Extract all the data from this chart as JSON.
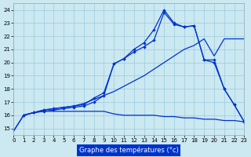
{
  "xlabel": "Graphe des températures (°c)",
  "bg_color": "#cce8f0",
  "grid_color": "#99cce0",
  "line_color": "#0033cc",
  "xlim": [
    0,
    23
  ],
  "ylim": [
    14.5,
    24.5
  ],
  "xticks": [
    0,
    1,
    2,
    3,
    4,
    5,
    6,
    7,
    8,
    9,
    10,
    11,
    12,
    13,
    14,
    15,
    16,
    17,
    18,
    19,
    20,
    21,
    22,
    23
  ],
  "yticks": [
    15,
    16,
    17,
    18,
    19,
    20,
    21,
    22,
    23,
    24
  ],
  "line1_x": [
    0,
    1,
    2,
    3,
    4,
    5,
    6,
    7,
    8,
    9,
    10,
    11,
    12,
    13,
    14,
    15,
    16,
    17,
    18,
    19,
    20,
    21,
    22,
    23
  ],
  "line1_y": [
    14.8,
    16.0,
    16.2,
    16.3,
    16.3,
    16.3,
    16.3,
    16.3,
    16.3,
    16.3,
    16.1,
    16.0,
    16.0,
    16.0,
    16.0,
    15.9,
    15.9,
    15.8,
    15.8,
    15.7,
    15.7,
    15.6,
    15.6,
    15.5
  ],
  "line2_x": [
    0,
    1,
    2,
    3,
    4,
    5,
    6,
    7,
    8,
    9,
    10,
    11,
    12,
    13,
    14,
    15,
    16,
    17,
    18,
    19,
    20,
    21,
    22,
    23
  ],
  "line2_y": [
    14.8,
    16.0,
    16.2,
    16.4,
    16.5,
    16.6,
    16.7,
    16.9,
    17.2,
    17.5,
    17.8,
    18.2,
    18.6,
    19.0,
    19.5,
    20.0,
    20.5,
    21.0,
    21.3,
    21.8,
    20.5,
    21.8,
    21.8,
    21.8
  ],
  "line3_x": [
    1,
    2,
    3,
    4,
    5,
    6,
    7,
    8,
    9,
    10,
    11,
    12,
    13,
    14,
    15,
    16,
    17,
    18,
    19,
    20,
    21,
    22,
    23
  ],
  "line3_y": [
    16.0,
    16.2,
    16.3,
    16.4,
    16.5,
    16.6,
    16.7,
    17.0,
    17.5,
    19.9,
    20.3,
    21.0,
    21.5,
    22.5,
    24.0,
    23.0,
    22.7,
    22.8,
    20.2,
    20.0,
    18.0,
    16.8,
    15.5
  ],
  "line4_x": [
    1,
    2,
    3,
    4,
    5,
    6,
    7,
    8,
    9,
    10,
    11,
    12,
    13,
    14,
    15,
    16,
    17,
    18,
    19,
    20,
    21,
    22,
    23
  ],
  "line4_y": [
    16.0,
    16.2,
    16.4,
    16.5,
    16.6,
    16.7,
    16.8,
    17.3,
    17.7,
    19.9,
    20.3,
    20.8,
    21.2,
    21.7,
    23.8,
    22.9,
    22.7,
    22.8,
    20.2,
    20.2,
    18.0,
    16.8,
    15.5
  ]
}
